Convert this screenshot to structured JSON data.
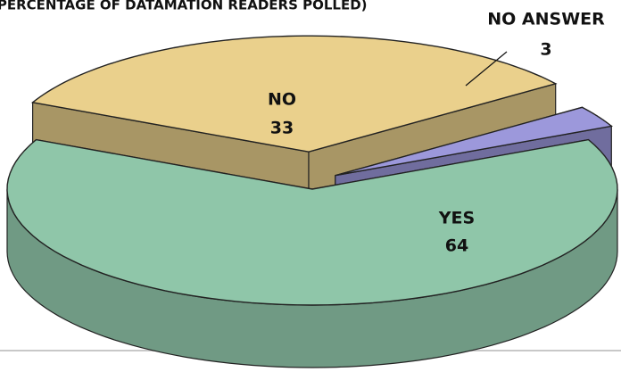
{
  "chart_data": {
    "type": "pie",
    "subtitle": "(PERCENTAGE OF DATAMATION READERS POLLED)",
    "categories": [
      "YES",
      "NO",
      "NO ANSWER"
    ],
    "values": [
      64,
      33,
      3
    ],
    "colors": [
      "#8fc6a9",
      "#ead08c",
      "#9c98db"
    ]
  }
}
